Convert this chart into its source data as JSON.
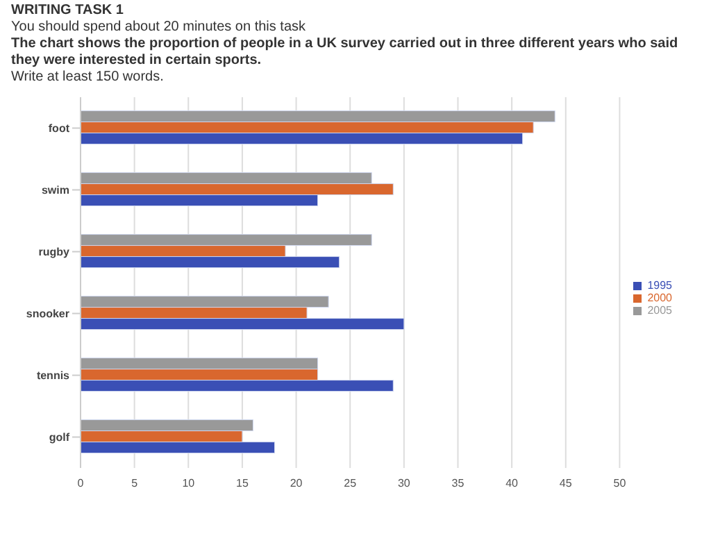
{
  "chart_data": {
    "type": "bar",
    "orientation": "horizontal",
    "title": "WRITING TASK 1",
    "subtitle": "You should spend about 20 minutes on this task",
    "annotations": [
      "The chart shows the proportion of people in a UK survey carried out in three different years who said they were interested in certain sports.",
      "Write at least 150 words."
    ],
    "categories": [
      "foot",
      "swim",
      "rugby",
      "snooker",
      "tennis",
      "golf"
    ],
    "series": [
      {
        "name": "2005",
        "color": "#999999",
        "values": [
          44,
          27,
          27,
          23,
          22,
          16
        ]
      },
      {
        "name": "2000",
        "color": "#d9672e",
        "values": [
          42,
          29,
          19,
          21,
          22,
          15
        ]
      },
      {
        "name": "1995",
        "color": "#3a4fb5",
        "values": [
          41,
          22,
          24,
          30,
          29,
          18
        ]
      }
    ],
    "xlim": [
      0,
      50
    ],
    "xticks": [
      0,
      5,
      10,
      15,
      20,
      25,
      30,
      35,
      40,
      45,
      50
    ],
    "grid": "x",
    "legend": "right"
  }
}
